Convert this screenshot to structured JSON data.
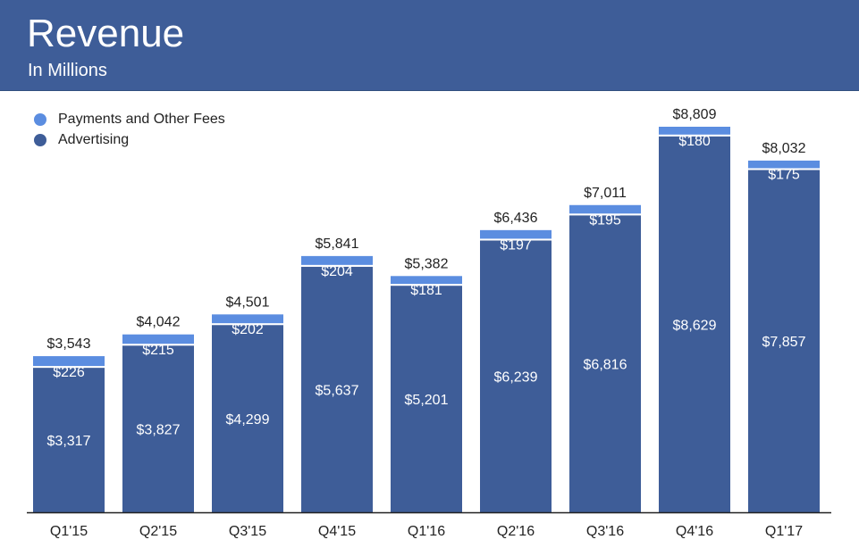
{
  "header": {
    "title": "Revenue",
    "subtitle": "In Millions"
  },
  "colors": {
    "header_bg": "#3e5d98",
    "advertising": "#3e5d98",
    "payments": "#5b8de0",
    "axis": "#222222"
  },
  "legend": {
    "items": [
      {
        "label": "Payments and Other Fees",
        "color": "#5b8de0"
      },
      {
        "label": "Advertising",
        "color": "#3e5d98"
      }
    ]
  },
  "chart_data": {
    "type": "bar",
    "stacked": true,
    "title": "Revenue",
    "subtitle": "In Millions",
    "categories": [
      "Q1'15",
      "Q2'15",
      "Q3'15",
      "Q4'15",
      "Q1'16",
      "Q2'16",
      "Q3'16",
      "Q4'16",
      "Q1'17"
    ],
    "series": [
      {
        "name": "Advertising",
        "color": "#3e5d98",
        "values": [
          3317,
          3827,
          4299,
          5637,
          5201,
          6239,
          6816,
          8629,
          7857
        ]
      },
      {
        "name": "Payments and Other Fees",
        "color": "#5b8de0",
        "values": [
          226,
          215,
          202,
          204,
          181,
          197,
          195,
          180,
          175
        ]
      }
    ],
    "totals": [
      3543,
      4042,
      4501,
      5841,
      5382,
      6436,
      7011,
      8809,
      8032
    ],
    "total_labels": [
      "$3,543",
      "$4,042",
      "$4,501",
      "$5,841",
      "$5,382",
      "$6,436",
      "$7,011",
      "$8,809",
      "$8,032"
    ],
    "advertising_labels": [
      "$3,317",
      "$3,827",
      "$4,299",
      "$5,637",
      "$5,201",
      "$6,239",
      "$6,816",
      "$8,629",
      "$7,857"
    ],
    "payments_labels": [
      "$226",
      "$215",
      "$202",
      "$204",
      "$181",
      "$197",
      "$195",
      "$180",
      "$175"
    ],
    "ylim": [
      0,
      9000
    ],
    "grid": false,
    "legend_position": "top-left"
  }
}
